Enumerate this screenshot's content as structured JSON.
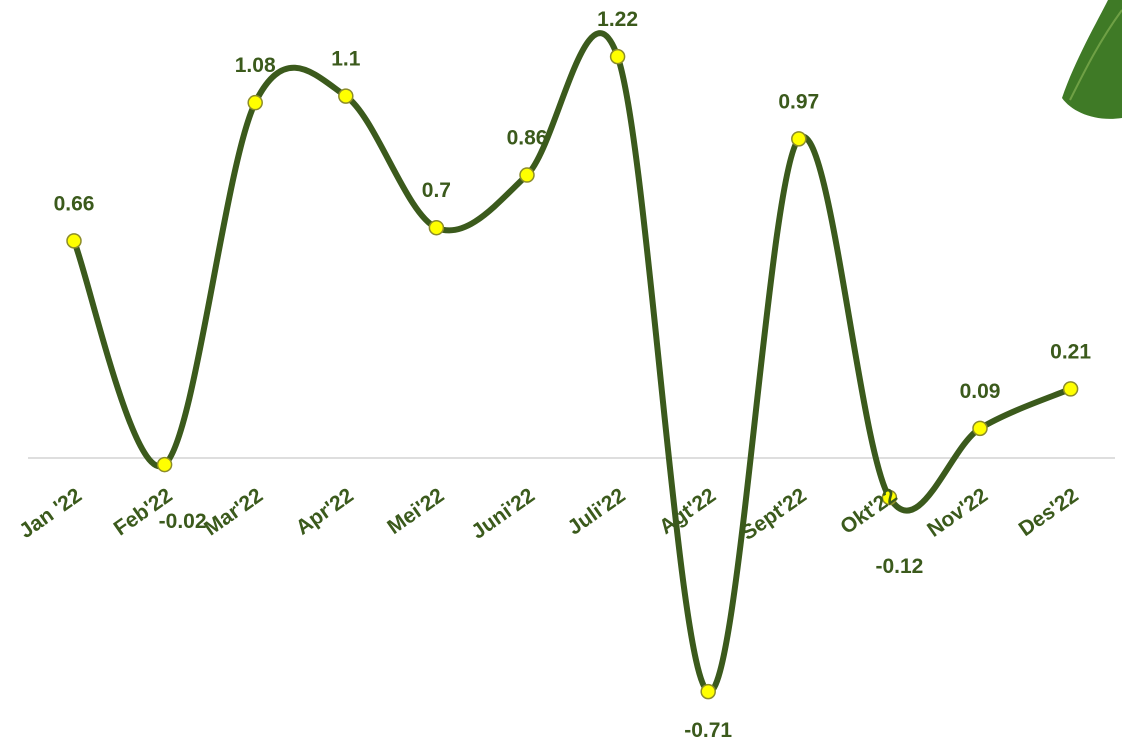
{
  "chart_data": {
    "type": "line",
    "categories": [
      "Jan '22",
      "Feb'22",
      "Mar'22",
      "Apr'22",
      "Mei'22",
      "Juni'22",
      "Juli'22",
      "Agt'22",
      "Sept'22",
      "Okt'22",
      "Nov'22",
      "Des'22"
    ],
    "series": [
      {
        "color": "#3b5a1c",
        "values": [
          0.66,
          -0.02,
          1.08,
          1.1,
          0.7,
          0.86,
          1.22,
          -0.71,
          0.97,
          -0.12,
          0.09,
          0.21
        ]
      }
    ],
    "marker_color": "#ffff00"
  }
}
